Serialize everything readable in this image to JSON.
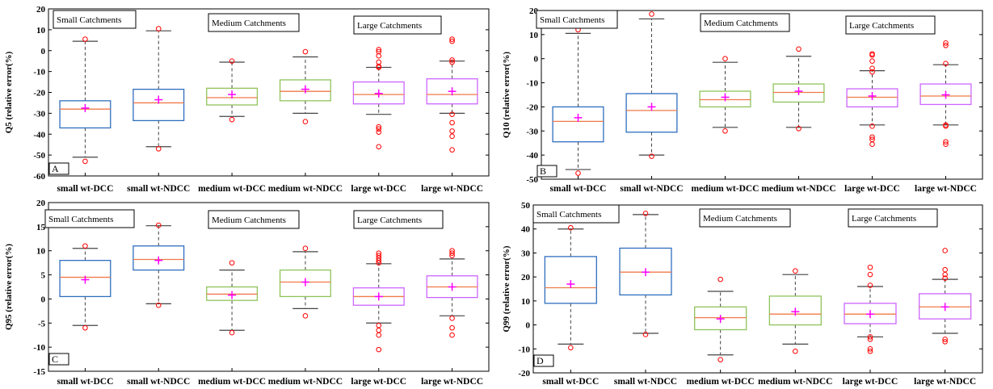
{
  "categories": [
    "small wt-DCC",
    "small wt-NDCC",
    "medium wt-DCC",
    "medium wt-NDCC",
    "large wt-DCC",
    "large wt-NDCC"
  ],
  "group_labels": [
    "Small Catchments",
    "Medium Catchments",
    "Large Catchments"
  ],
  "colors": {
    "small": "#2f6fbf",
    "medium": "#8fc45a",
    "large": "#cc66ff",
    "median": "#f07a4a",
    "mean": "#ff00ff",
    "outlier": "#ff0000",
    "whisker": "#444444"
  },
  "chart_data": [
    {
      "type": "box",
      "panel": "A",
      "ylabel": "Q5 (relative error(%)",
      "ylim": [
        -60,
        20
      ],
      "yticks": [
        -60,
        -50,
        -40,
        -30,
        -20,
        -10,
        0,
        10,
        20
      ],
      "boxes": [
        {
          "q1": -37,
          "median": -28,
          "q3": -24,
          "whisker_low": -51,
          "whisker_high": 4.5,
          "mean": -27.5,
          "outliers": [
            5.5,
            -53
          ]
        },
        {
          "q1": -33.5,
          "median": -25,
          "q3": -18.5,
          "whisker_low": -46,
          "whisker_high": 9.5,
          "mean": -23.5,
          "outliers": [
            10.5,
            -47
          ]
        },
        {
          "q1": -26,
          "median": -22.5,
          "q3": -18,
          "whisker_low": -31.5,
          "whisker_high": -5.5,
          "mean": -21,
          "outliers": [
            -5,
            -33
          ]
        },
        {
          "q1": -24,
          "median": -19.5,
          "q3": -14,
          "whisker_low": -30,
          "whisker_high": -3,
          "mean": -18.5,
          "outliers": [
            -0.5,
            -34
          ]
        },
        {
          "q1": -25.5,
          "median": -21,
          "q3": -15,
          "whisker_low": -30.5,
          "whisker_high": -8,
          "mean": -20.5,
          "outliers": [
            0.5,
            -0.5,
            -2.5,
            -5.5,
            -7.5,
            -8,
            -36.5,
            -37.5,
            -39,
            -46
          ]
        },
        {
          "q1": -25.5,
          "median": -21,
          "q3": -13.5,
          "whisker_low": -30,
          "whisker_high": -5,
          "mean": -19.5,
          "outliers": [
            5.5,
            4.5,
            -4.5,
            -5.5,
            -30.5,
            -34.5,
            -38.5,
            -41,
            -47.5
          ]
        }
      ]
    },
    {
      "type": "box",
      "panel": "B",
      "ylabel": "Q10 (relative error(%)",
      "ylim": [
        -50,
        20
      ],
      "yticks": [
        -50,
        -40,
        -30,
        -20,
        -10,
        0,
        10,
        20
      ],
      "boxes": [
        {
          "q1": -34.5,
          "median": -26,
          "q3": -20,
          "whisker_low": -46,
          "whisker_high": 10.5,
          "mean": -24.5,
          "outliers": [
            12,
            -47.5
          ]
        },
        {
          "q1": -30.5,
          "median": -21.5,
          "q3": -14.5,
          "whisker_low": -40,
          "whisker_high": 16.5,
          "mean": -20,
          "outliers": [
            18.5,
            -40.5
          ]
        },
        {
          "q1": -20,
          "median": -17,
          "q3": -13.5,
          "whisker_low": -28.5,
          "whisker_high": -1.5,
          "mean": -16,
          "outliers": [
            0,
            -30
          ]
        },
        {
          "q1": -18,
          "median": -14,
          "q3": -10.5,
          "whisker_low": -28.5,
          "whisker_high": 1,
          "mean": -13.5,
          "outliers": [
            4,
            -29
          ]
        },
        {
          "q1": -20,
          "median": -16,
          "q3": -12.5,
          "whisker_low": -27.5,
          "whisker_high": -5,
          "mean": -15.5,
          "outliers": [
            2,
            1.5,
            -1,
            -4,
            -5.5,
            -28,
            -32.5,
            -33.5,
            -35.5
          ]
        },
        {
          "q1": -19,
          "median": -15.5,
          "q3": -10.5,
          "whisker_low": -27.5,
          "whisker_high": -2.5,
          "mean": -15,
          "outliers": [
            6.5,
            5.5,
            -2,
            -27.5,
            -28,
            -34.5,
            -35.5
          ]
        }
      ]
    },
    {
      "type": "box",
      "panel": "C",
      "ylabel": "Q95 (relative error(%)",
      "ylim": [
        -15,
        20
      ],
      "yticks": [
        -15,
        -10,
        -5,
        0,
        5,
        10,
        15,
        20
      ],
      "boxes": [
        {
          "q1": 0.5,
          "median": 4.5,
          "q3": 8,
          "whisker_low": -5.5,
          "whisker_high": 10.5,
          "mean": 4,
          "outliers": [
            11,
            -6
          ]
        },
        {
          "q1": 6,
          "median": 8.2,
          "q3": 11,
          "whisker_low": -1,
          "whisker_high": 15.2,
          "mean": 8,
          "outliers": [
            15.3,
            -1.3
          ]
        },
        {
          "q1": -0.3,
          "median": 1,
          "q3": 2.5,
          "whisker_low": -6.5,
          "whisker_high": 6,
          "mean": 0.8,
          "outliers": [
            7.5,
            -7
          ]
        },
        {
          "q1": 0.5,
          "median": 3.5,
          "q3": 6,
          "whisker_low": -2,
          "whisker_high": 9.8,
          "mean": 3.5,
          "outliers": [
            10.5,
            -3.5
          ]
        },
        {
          "q1": -1.3,
          "median": 0.5,
          "q3": 2.3,
          "whisker_low": -5,
          "whisker_high": 7.3,
          "mean": 0.5,
          "outliers": [
            9.5,
            9,
            8.5,
            8,
            7.5,
            -5.5,
            -6.5,
            -7.5,
            -10.5
          ]
        },
        {
          "q1": 0.3,
          "median": 2.5,
          "q3": 4.8,
          "whisker_low": -3.5,
          "whisker_high": 8.3,
          "mean": 2.5,
          "outliers": [
            10,
            9.5,
            9,
            -4,
            -6,
            -7.5
          ]
        }
      ]
    },
    {
      "type": "box",
      "panel": "D",
      "ylabel": "Q99 (relative error(%)",
      "ylim": [
        -20,
        50
      ],
      "yticks": [
        -20,
        -10,
        0,
        10,
        20,
        30,
        40,
        50
      ],
      "boxes": [
        {
          "q1": 9,
          "median": 15.5,
          "q3": 28.5,
          "whisker_low": -8,
          "whisker_high": 40,
          "mean": 17,
          "outliers": [
            40.5,
            -9.5
          ]
        },
        {
          "q1": 12.5,
          "median": 22,
          "q3": 32,
          "whisker_low": -3.5,
          "whisker_high": 46,
          "mean": 22,
          "outliers": [
            46.5,
            -4
          ]
        },
        {
          "q1": -2,
          "median": 3,
          "q3": 7.5,
          "whisker_low": -12.5,
          "whisker_high": 14,
          "mean": 2.5,
          "outliers": [
            19,
            -14.5
          ]
        },
        {
          "q1": 0,
          "median": 4.5,
          "q3": 12,
          "whisker_low": -8,
          "whisker_high": 21,
          "mean": 5.5,
          "outliers": [
            22.5,
            -11
          ]
        },
        {
          "q1": 0.5,
          "median": 4.5,
          "q3": 9,
          "whisker_low": -5,
          "whisker_high": 16,
          "mean": 4.5,
          "outliers": [
            24,
            21,
            16.5,
            -5,
            -6,
            -10,
            -11
          ]
        },
        {
          "q1": 2.5,
          "median": 7.5,
          "q3": 13,
          "whisker_low": -3.5,
          "whisker_high": 19,
          "mean": 7.5,
          "outliers": [
            31,
            23,
            21,
            19.5,
            -6,
            -7
          ]
        }
      ]
    }
  ]
}
